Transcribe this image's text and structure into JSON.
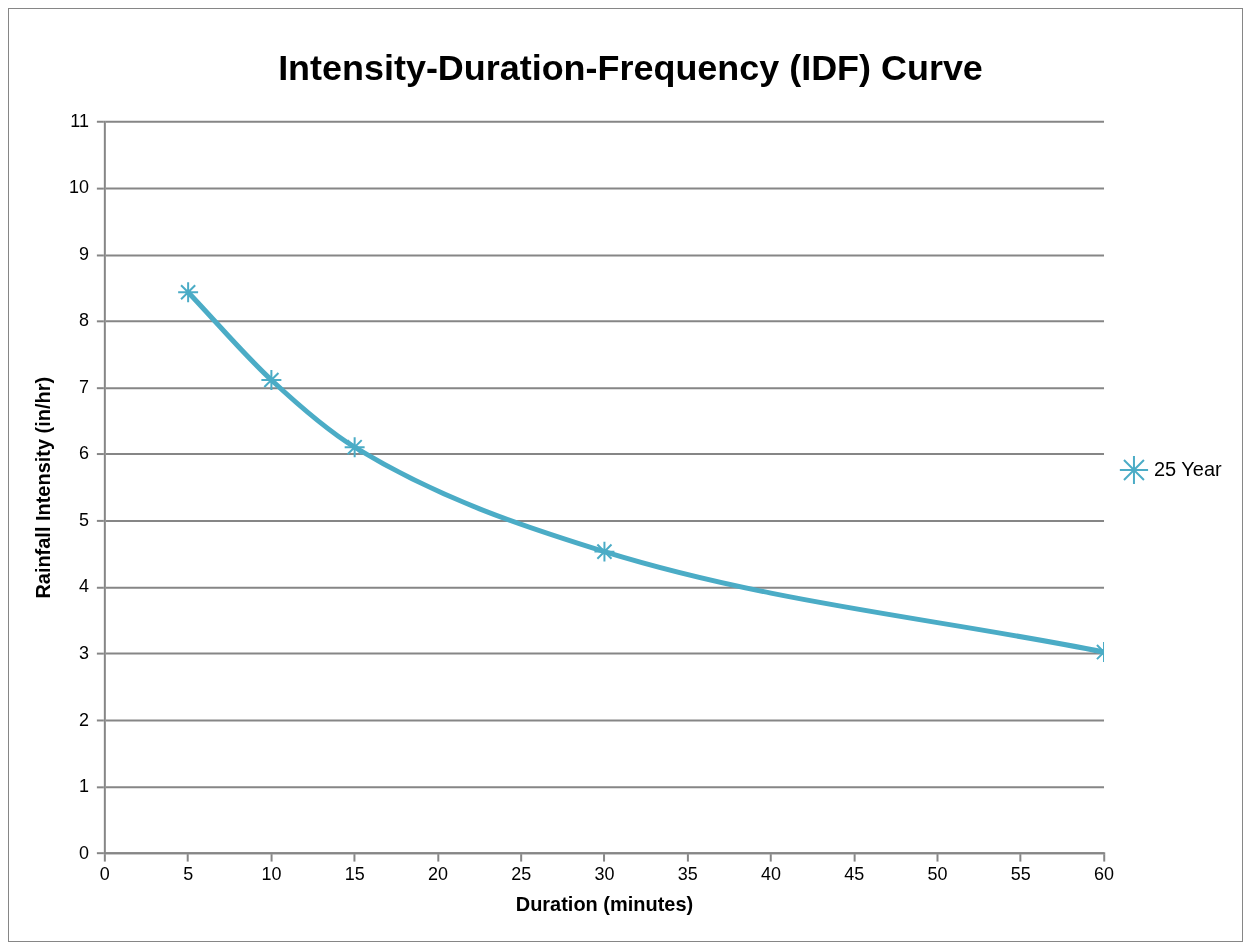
{
  "chart_data": {
    "type": "line",
    "title": "Intensity-Duration-Frequency (IDF) Curve",
    "xlabel": "Duration (minutes)",
    "ylabel": "Rainfall Intensity (in/hr)",
    "x": [
      5,
      10,
      15,
      30,
      60
    ],
    "series": [
      {
        "name": "25 Year",
        "color": "#4bacc6",
        "values": [
          8.44,
          7.12,
          6.11,
          4.54,
          3.03
        ]
      }
    ],
    "xlim": [
      0,
      60
    ],
    "xticks": [
      0,
      5,
      10,
      15,
      20,
      25,
      30,
      35,
      40,
      45,
      50,
      55,
      60
    ],
    "ylim": [
      0,
      11
    ],
    "yticks": [
      0,
      1,
      2,
      3,
      4,
      5,
      6,
      7,
      8,
      9,
      10,
      11
    ],
    "grid": "y",
    "legend": "right",
    "marker": "cross",
    "line_style": "solid"
  }
}
